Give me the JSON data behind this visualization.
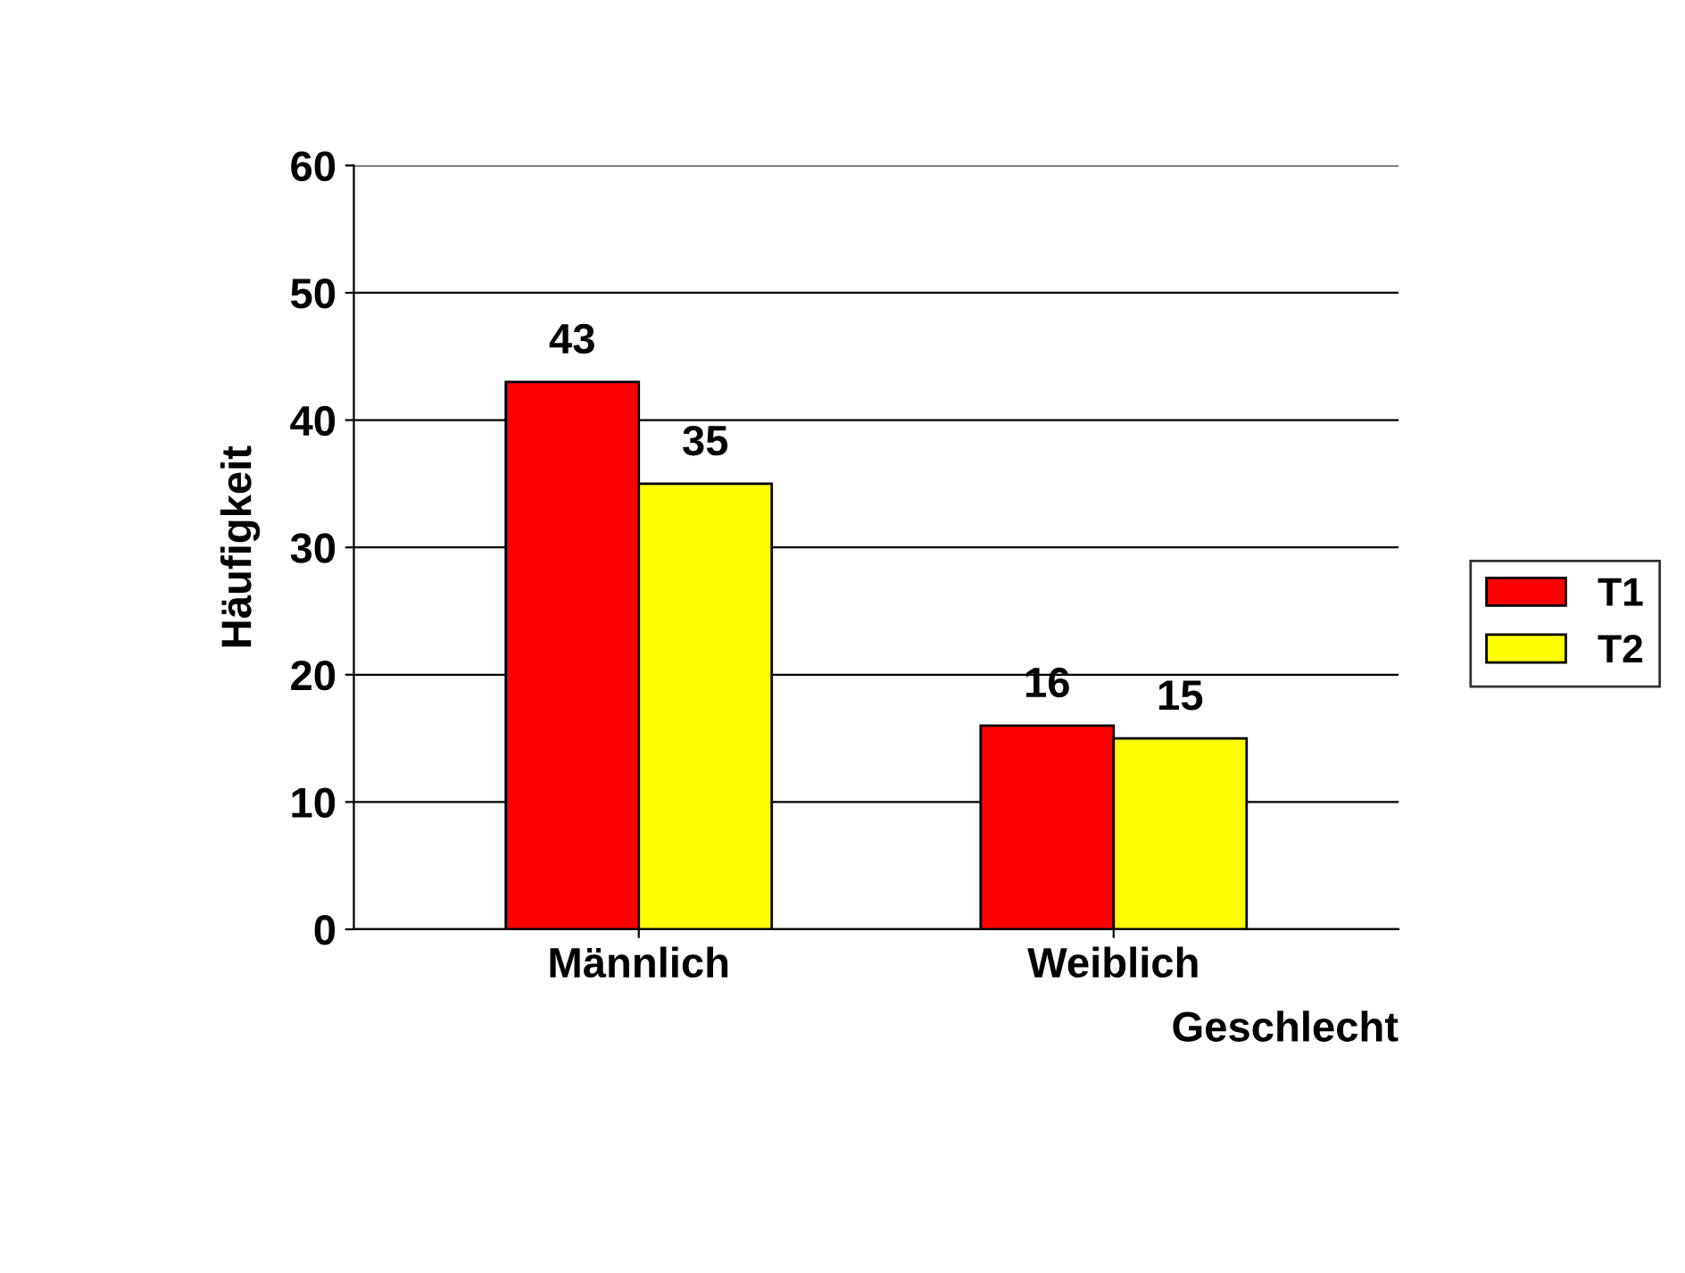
{
  "chart_data": {
    "type": "bar",
    "categories": [
      "Männlich",
      "Weiblich"
    ],
    "series": [
      {
        "name": "T1",
        "color": "#ff0000",
        "values": [
          43,
          16
        ]
      },
      {
        "name": "T2",
        "color": "#ffff00",
        "values": [
          35,
          15
        ]
      }
    ],
    "xlabel": "Geschlecht",
    "ylabel": "Häufigkeit",
    "ylim": [
      0,
      60
    ],
    "yticks": [
      0,
      10,
      20,
      30,
      40,
      50,
      60
    ],
    "grid": "y",
    "legend": "right",
    "data_labels": true
  }
}
